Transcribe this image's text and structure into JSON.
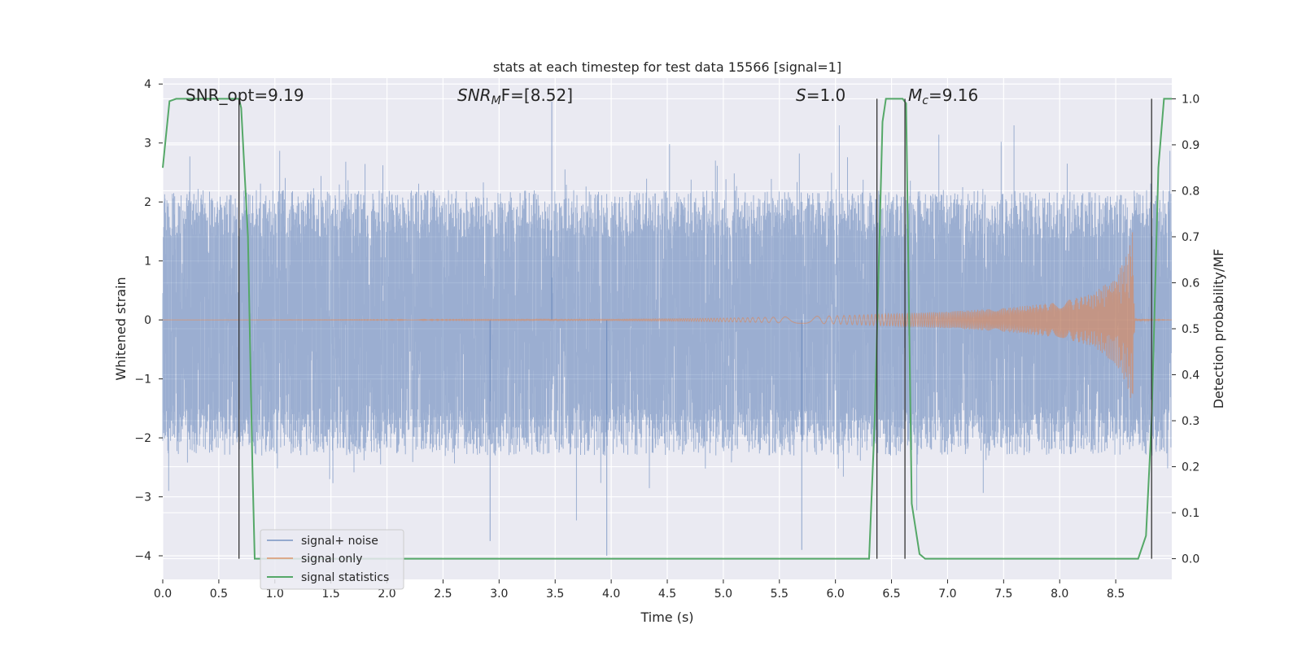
{
  "chart_data": {
    "type": "line",
    "title": "stats at each timestep for test data 15566 [signal=1]",
    "xlabel": "Time (s)",
    "ylabel": "Whitened strain",
    "y2label": "Detection probability/MF",
    "xlim": [
      0.0,
      9.0
    ],
    "ylim": [
      -4.4,
      4.1
    ],
    "y2lim": [
      -0.045,
      1.045
    ],
    "x_ticks": [
      "0.0",
      "0.5",
      "1.0",
      "1.5",
      "2.0",
      "2.5",
      "3.0",
      "3.5",
      "4.0",
      "4.5",
      "5.0",
      "5.5",
      "6.0",
      "6.5",
      "7.0",
      "7.5",
      "8.0",
      "8.5"
    ],
    "y_ticks": [
      "4",
      "3",
      "2",
      "1",
      "0",
      "−1",
      "−2",
      "−3",
      "−4"
    ],
    "y2_ticks": [
      "1.0",
      "0.9",
      "0.8",
      "0.7",
      "0.6",
      "0.5",
      "0.4",
      "0.3",
      "0.2",
      "0.1",
      "0.0"
    ],
    "grid": true,
    "legend_position": "lower-left",
    "annotations": {
      "snr_opt": "SNR_opt=9.19",
      "snr_mf_main": "SNR",
      "snr_mf_sub": "M",
      "snr_mf_rest": "F=[8.52]",
      "s_main": "S",
      "s_rest": "=1.0",
      "mc_main": "M",
      "mc_sub": "c",
      "mc_rest": "=9.16"
    },
    "vertical_lines": [
      0.68,
      6.37,
      6.62,
      8.82
    ],
    "series": [
      {
        "name": "signal+ noise",
        "color": "#4c72b0",
        "description_of_values": "white-noise strain, amplitude roughly within ±2.5, spikes to ±3.8",
        "peak_values": [
          [
            3.47,
            3.7
          ],
          [
            3.96,
            -4.0
          ],
          [
            5.7,
            -3.9
          ],
          [
            2.92,
            -3.75
          ]
        ]
      },
      {
        "name": "signal only",
        "color": "#dd8452",
        "description_of_values": "chirp waveform, envelope grows from 0 at t≈4 s to ±1.5 at t≈8.65 s, ends abruptly",
        "envelope": [
          [
            0.0,
            0.0
          ],
          [
            4.0,
            0.01
          ],
          [
            5.0,
            0.03
          ],
          [
            6.0,
            0.07
          ],
          [
            7.0,
            0.14
          ],
          [
            7.5,
            0.2
          ],
          [
            8.0,
            0.3
          ],
          [
            8.3,
            0.45
          ],
          [
            8.5,
            0.75
          ],
          [
            8.6,
            1.1
          ],
          [
            8.65,
            1.5
          ],
          [
            8.67,
            0.02
          ],
          [
            9.0,
            0.0
          ]
        ]
      },
      {
        "name": "signal statistics",
        "color": "#55a868",
        "axis": "right",
        "x": [
          0.0,
          0.06,
          0.12,
          0.3,
          0.5,
          0.68,
          0.7,
          0.76,
          0.8,
          0.82,
          1.0,
          2.0,
          3.0,
          4.0,
          5.0,
          6.0,
          6.3,
          6.35,
          6.42,
          6.45,
          6.55,
          6.6,
          6.63,
          6.68,
          6.75,
          6.8,
          7.0,
          8.0,
          8.7,
          8.77,
          8.82,
          8.88,
          8.93,
          8.97,
          9.0
        ],
        "values": [
          0.85,
          0.995,
          1.0,
          1.0,
          1.0,
          1.0,
          0.98,
          0.7,
          0.2,
          0.0,
          0.0,
          0.0,
          0.0,
          0.0,
          0.0,
          0.0,
          0.0,
          0.3,
          0.95,
          1.0,
          1.0,
          1.0,
          0.99,
          0.12,
          0.01,
          0.0,
          0.0,
          0.0,
          0.0,
          0.05,
          0.3,
          0.85,
          1.0,
          1.0,
          1.0
        ]
      }
    ]
  }
}
